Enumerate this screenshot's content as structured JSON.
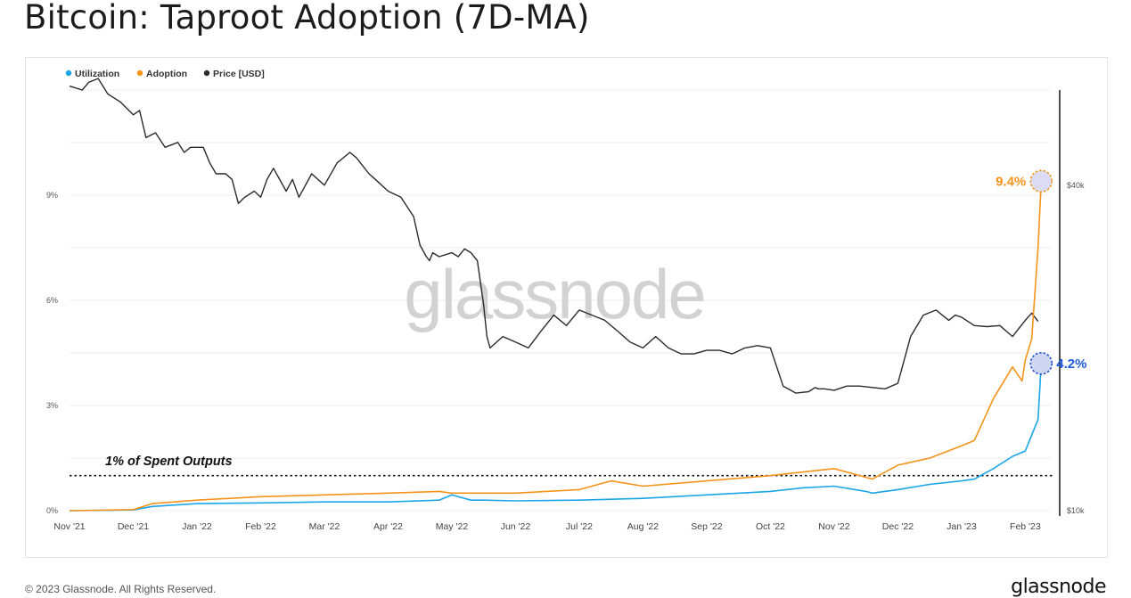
{
  "title": "Bitcoin: Taproot Adoption (7D-MA)",
  "footer": {
    "copyright": "© 2023 Glassnode. All Rights Reserved.",
    "brand": "glassnode"
  },
  "watermark": "glassnode",
  "annotation": "1% of Spent Outputs",
  "callouts": {
    "adoption": "9.4%",
    "utilization": "4.2%"
  },
  "colors": {
    "utilization": "#1ba5e8",
    "adoption": "#f7931a",
    "price": "#2b2b2b"
  },
  "chart_data": {
    "type": "line",
    "title": "Bitcoin: Taproot Adoption (7D-MA)",
    "legend_position": "top-left",
    "grid": true,
    "x_labels": [
      "Nov '21",
      "Dec '21",
      "Jan '22",
      "Feb '22",
      "Mar '22",
      "Apr '22",
      "May '22",
      "Jun '22",
      "Jul '22",
      "Aug '22",
      "Sep '22",
      "Oct '22",
      "Nov '22",
      "Dec '22",
      "Jan '23",
      "Feb '23"
    ],
    "xlim": [
      0,
      15.4
    ],
    "y_left": {
      "ticks": [
        "0%",
        "3%",
        "6%",
        "9%"
      ],
      "tick_values": [
        0,
        3,
        6,
        9
      ],
      "range": [
        0,
        12
      ]
    },
    "y_right": {
      "ticks": [
        "$10k",
        "$40k"
      ],
      "tick_values": [
        10000,
        40000
      ],
      "scale": "log",
      "range": [
        10000,
        60000
      ]
    },
    "reference_line": {
      "y": 1,
      "label": "1% of Spent Outputs"
    },
    "series": [
      {
        "name": "Utilization",
        "axis": "left",
        "color": "#1ba5e8",
        "x": [
          0,
          1,
          1.3,
          2,
          3,
          4,
          5,
          5.8,
          6,
          6.3,
          6.5,
          7,
          8,
          9,
          10,
          11,
          11.5,
          12,
          12.5,
          12.6,
          13,
          13.5,
          14,
          14.2,
          14.5,
          14.8,
          15,
          15.2,
          15.25
        ],
        "y": [
          0,
          0.02,
          0.12,
          0.2,
          0.22,
          0.25,
          0.25,
          0.3,
          0.45,
          0.3,
          0.3,
          0.28,
          0.3,
          0.35,
          0.45,
          0.55,
          0.65,
          0.7,
          0.55,
          0.5,
          0.6,
          0.75,
          0.85,
          0.9,
          1.2,
          1.55,
          1.7,
          2.6,
          4.2
        ]
      },
      {
        "name": "Adoption",
        "axis": "left",
        "color": "#f7931a",
        "x": [
          0,
          1,
          1.3,
          2,
          3,
          4,
          5,
          5.8,
          6,
          6.5,
          7,
          8,
          8.5,
          9,
          10,
          11,
          11.5,
          12,
          12.5,
          12.6,
          13,
          13.5,
          14,
          14.2,
          14.5,
          14.8,
          14.95,
          15,
          15.1,
          15.2,
          15.25
        ],
        "y": [
          0,
          0.03,
          0.2,
          0.3,
          0.4,
          0.45,
          0.5,
          0.55,
          0.5,
          0.5,
          0.5,
          0.6,
          0.85,
          0.7,
          0.85,
          1.0,
          1.1,
          1.2,
          0.95,
          0.9,
          1.3,
          1.5,
          1.85,
          2.0,
          3.2,
          4.1,
          3.7,
          4.3,
          4.9,
          7.5,
          9.4
        ]
      },
      {
        "name": "Price [USD]",
        "axis": "right",
        "color": "#2b2b2b",
        "x": [
          0,
          0.2,
          0.3,
          0.45,
          0.6,
          0.8,
          1,
          1.1,
          1.2,
          1.35,
          1.5,
          1.7,
          1.8,
          1.9,
          2.1,
          2.2,
          2.3,
          2.45,
          2.55,
          2.65,
          2.75,
          2.9,
          3.0,
          3.1,
          3.2,
          3.4,
          3.5,
          3.6,
          3.8,
          4.0,
          4.2,
          4.4,
          4.5,
          4.7,
          4.8,
          5.0,
          5.2,
          5.4,
          5.5,
          5.6,
          5.65,
          5.7,
          5.8,
          6.0,
          6.1,
          6.2,
          6.3,
          6.4,
          6.5,
          6.55,
          6.6,
          6.8,
          7.0,
          7.2,
          7.4,
          7.6,
          7.8,
          8.0,
          8.2,
          8.4,
          8.6,
          8.8,
          9.0,
          9.2,
          9.4,
          9.6,
          9.8,
          10.0,
          10.2,
          10.4,
          10.6,
          10.8,
          11.0,
          11.2,
          11.4,
          11.6,
          11.7,
          11.75,
          11.85,
          12.0,
          12.2,
          12.4,
          12.6,
          12.8,
          13.0,
          13.2,
          13.4,
          13.6,
          13.8,
          13.9,
          14.0,
          14.2,
          14.4,
          14.6,
          14.8,
          15.0,
          15.1,
          15.2
        ],
        "y": [
          61000,
          60000,
          62000,
          63000,
          59000,
          57000,
          54000,
          55000,
          49000,
          50000,
          47000,
          48000,
          46000,
          47000,
          47000,
          44000,
          42000,
          42000,
          41000,
          37000,
          38000,
          39000,
          38000,
          41000,
          43000,
          39000,
          41000,
          38000,
          42000,
          40000,
          44000,
          46000,
          45000,
          42000,
          41000,
          39000,
          38000,
          35000,
          31000,
          29500,
          29000,
          30000,
          29500,
          30000,
          29500,
          30500,
          30000,
          29000,
          24000,
          21000,
          20000,
          21000,
          20500,
          20000,
          21500,
          23000,
          22000,
          23500,
          23000,
          22500,
          21500,
          20500,
          20000,
          21000,
          20000,
          19500,
          19500,
          19800,
          19800,
          19500,
          20000,
          20200,
          20000,
          17000,
          16500,
          16600,
          16900,
          16800,
          16800,
          16700,
          17000,
          17000,
          16900,
          16800,
          17200,
          21000,
          23000,
          23500,
          22500,
          23000,
          22800,
          22000,
          21900,
          22000,
          21000,
          22500,
          23200,
          22400
        ]
      }
    ]
  }
}
